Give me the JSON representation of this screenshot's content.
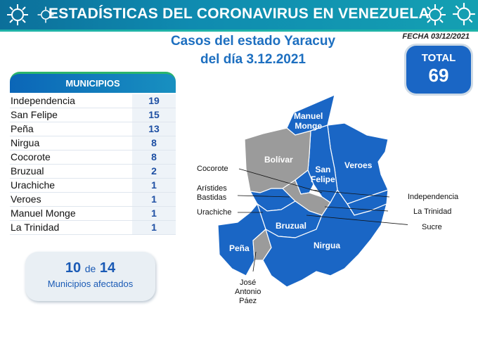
{
  "header": {
    "title": "ESTADÍSTICAS DEL CORONAVIRUS EN VENEZUELA",
    "fecha": "FECHA 03/12/2021",
    "subtitle_line1": "Casos del estado Yaracuy",
    "subtitle_line2": "del día 3.12.2021"
  },
  "total": {
    "label": "TOTAL",
    "value": "69"
  },
  "municipios": {
    "header": "MUNICIPIOS",
    "rows": [
      {
        "name": "Independencia",
        "value": "19"
      },
      {
        "name": "San Felipe",
        "value": "15"
      },
      {
        "name": "Peña",
        "value": "13"
      },
      {
        "name": "Nirgua",
        "value": "8"
      },
      {
        "name": "Cocorote",
        "value": "8"
      },
      {
        "name": "Bruzual",
        "value": "2"
      },
      {
        "name": "Urachiche",
        "value": "1"
      },
      {
        "name": "Veroes",
        "value": "1"
      },
      {
        "name": "Manuel Monge",
        "value": "1"
      },
      {
        "name": "La Trinidad",
        "value": "1"
      }
    ]
  },
  "afectados": {
    "count": "10",
    "de": "de",
    "total": "14",
    "label": "Municipios afectados"
  },
  "map": {
    "inner_labels": {
      "manuel_monge_1": "Manuel",
      "manuel_monge_2": "Monge",
      "bolivar": "Bolívar",
      "san_felipe_1": "San",
      "san_felipe_2": "Felipe",
      "veroes": "Veroes",
      "bruzual": "Bruzual",
      "nirgua": "Nirgua",
      "pena": "Peña"
    },
    "callouts": {
      "cocorote": "Cocorote",
      "aristides_1": "Arístides",
      "aristides_2": "Bastidas",
      "urachiche": "Urachiche",
      "independencia": "Independencia",
      "la_trinidad": "La Trinidad",
      "sucre": "Sucre",
      "jose_1": "José",
      "jose_2": "Antonio",
      "jose_3": "Páez"
    },
    "colors": {
      "affected": "#1a66c5",
      "unaffected": "#9b9b9b"
    }
  }
}
